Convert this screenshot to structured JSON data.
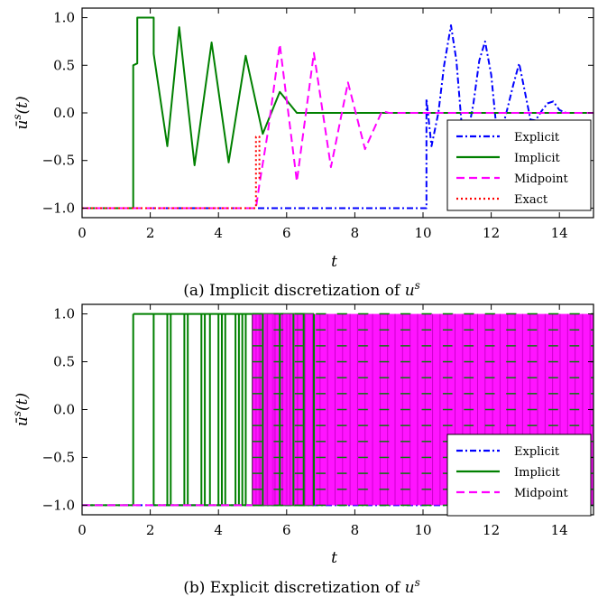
{
  "chart_data": [
    {
      "type": "line",
      "caption": "(a) Implicit discretization of u^s",
      "caption_prefix": "(a) Implicit discretization of ",
      "caption_math": "u",
      "caption_sup": "s",
      "xlabel": "t",
      "ylabel": "ū^s(t)",
      "xlim": [
        0,
        15
      ],
      "ylim": [
        -1.1,
        1.1
      ],
      "xticks": [
        "0",
        "2",
        "4",
        "6",
        "8",
        "10",
        "12",
        "14"
      ],
      "yticks": [
        "1.0",
        "0.5",
        "0.0",
        "−0.5",
        "−1.0"
      ],
      "grid": false,
      "legend_position": "lower-right",
      "series": [
        {
          "name": "Explicit",
          "color": "#0000ff",
          "dash": "dashdot",
          "x": [
            0,
            10.1,
            10.1,
            10.25,
            10.45,
            10.62,
            10.82,
            10.98,
            11.15,
            11.3,
            11.48,
            11.65,
            11.82,
            12.0,
            12.15,
            12.3,
            12.48,
            12.65,
            12.82,
            13.0,
            13.15,
            13.3,
            13.48,
            13.65,
            13.82,
            14.0,
            14.2,
            15.0
          ],
          "y": [
            -1.0,
            -1.0,
            0.15,
            -0.35,
            0.0,
            0.5,
            0.92,
            0.55,
            -0.2,
            -0.25,
            0.1,
            0.55,
            0.75,
            0.4,
            -0.15,
            -0.2,
            0.05,
            0.3,
            0.52,
            0.2,
            -0.07,
            -0.08,
            0.02,
            0.1,
            0.12,
            0.03,
            0.0,
            0.0
          ]
        },
        {
          "name": "Implicit",
          "color": "#008000",
          "dash": "solid",
          "x": [
            0,
            1.5,
            1.5,
            1.62,
            1.62,
            2.1,
            2.1,
            2.5,
            2.85,
            3.3,
            3.8,
            4.3,
            4.8,
            5.3,
            5.8,
            6.3,
            6.8,
            15.0
          ],
          "y": [
            -1.0,
            -1.0,
            0.5,
            0.52,
            1.0,
            1.0,
            0.62,
            -0.35,
            0.9,
            -0.55,
            0.74,
            -0.52,
            0.6,
            -0.22,
            0.22,
            0.0,
            0.0,
            0.0
          ]
        },
        {
          "name": "Midpoint",
          "color": "#ff00ff",
          "dash": "dashed",
          "x": [
            0,
            5.1,
            5.2,
            5.45,
            5.8,
            6.3,
            6.8,
            7.3,
            7.8,
            8.3,
            8.8,
            9.0,
            15.0
          ],
          "y": [
            -1.0,
            -1.0,
            -0.75,
            -0.2,
            0.72,
            -0.72,
            0.63,
            -0.57,
            0.32,
            -0.38,
            0.02,
            0.0,
            0.0
          ]
        },
        {
          "name": "Exact",
          "color": "#ff0000",
          "dash": "dotted",
          "x": [
            0,
            5.1,
            5.1,
            5.2,
            5.2
          ],
          "y": [
            -1.0,
            -1.0,
            -0.25,
            -0.25,
            -0.7
          ]
        }
      ]
    },
    {
      "type": "line",
      "caption": "(b) Explicit discretization of u^s",
      "caption_prefix": "(b) Explicit discretization of ",
      "caption_math": "u",
      "caption_sup": "s",
      "xlabel": "t",
      "ylabel": "ū^s(t)",
      "xlim": [
        0,
        15
      ],
      "ylim": [
        -1.1,
        1.1
      ],
      "xticks": [
        "0",
        "2",
        "4",
        "6",
        "8",
        "10",
        "12",
        "14"
      ],
      "yticks": [
        "1.0",
        "0.5",
        "0.0",
        "−0.5",
        "−1.0"
      ],
      "grid": false,
      "legend_position": "lower-right",
      "series": [
        {
          "name": "Explicit",
          "color": "#0000ff",
          "dash": "dashdot",
          "x": [
            0,
            15.0
          ],
          "y": [
            -1.0,
            -1.0
          ]
        },
        {
          "name": "Implicit",
          "color": "#008000",
          "dash": "solid",
          "behavior": "chattering between -1 and 1",
          "switch_times": [
            1.5,
            2.1,
            2.5,
            2.6,
            3.0,
            3.1,
            3.5,
            3.6,
            3.75,
            4.0,
            4.1,
            4.2,
            4.5,
            4.6,
            4.7,
            4.8,
            5.0,
            5.1,
            5.2,
            5.3,
            5.4,
            5.6,
            5.8,
            6.0,
            6.2,
            6.5,
            6.8
          ],
          "x": [
            0,
            1.5,
            15.0
          ],
          "y": [
            -1.0,
            1.0,
            0.0
          ]
        },
        {
          "name": "Midpoint",
          "color": "#ff00ff",
          "dash": "dashed",
          "behavior": "chattering between -1 and 1",
          "x": [
            0,
            5.0,
            15.0
          ],
          "y": [
            -1.0,
            -1.0,
            1.0
          ]
        }
      ]
    }
  ]
}
